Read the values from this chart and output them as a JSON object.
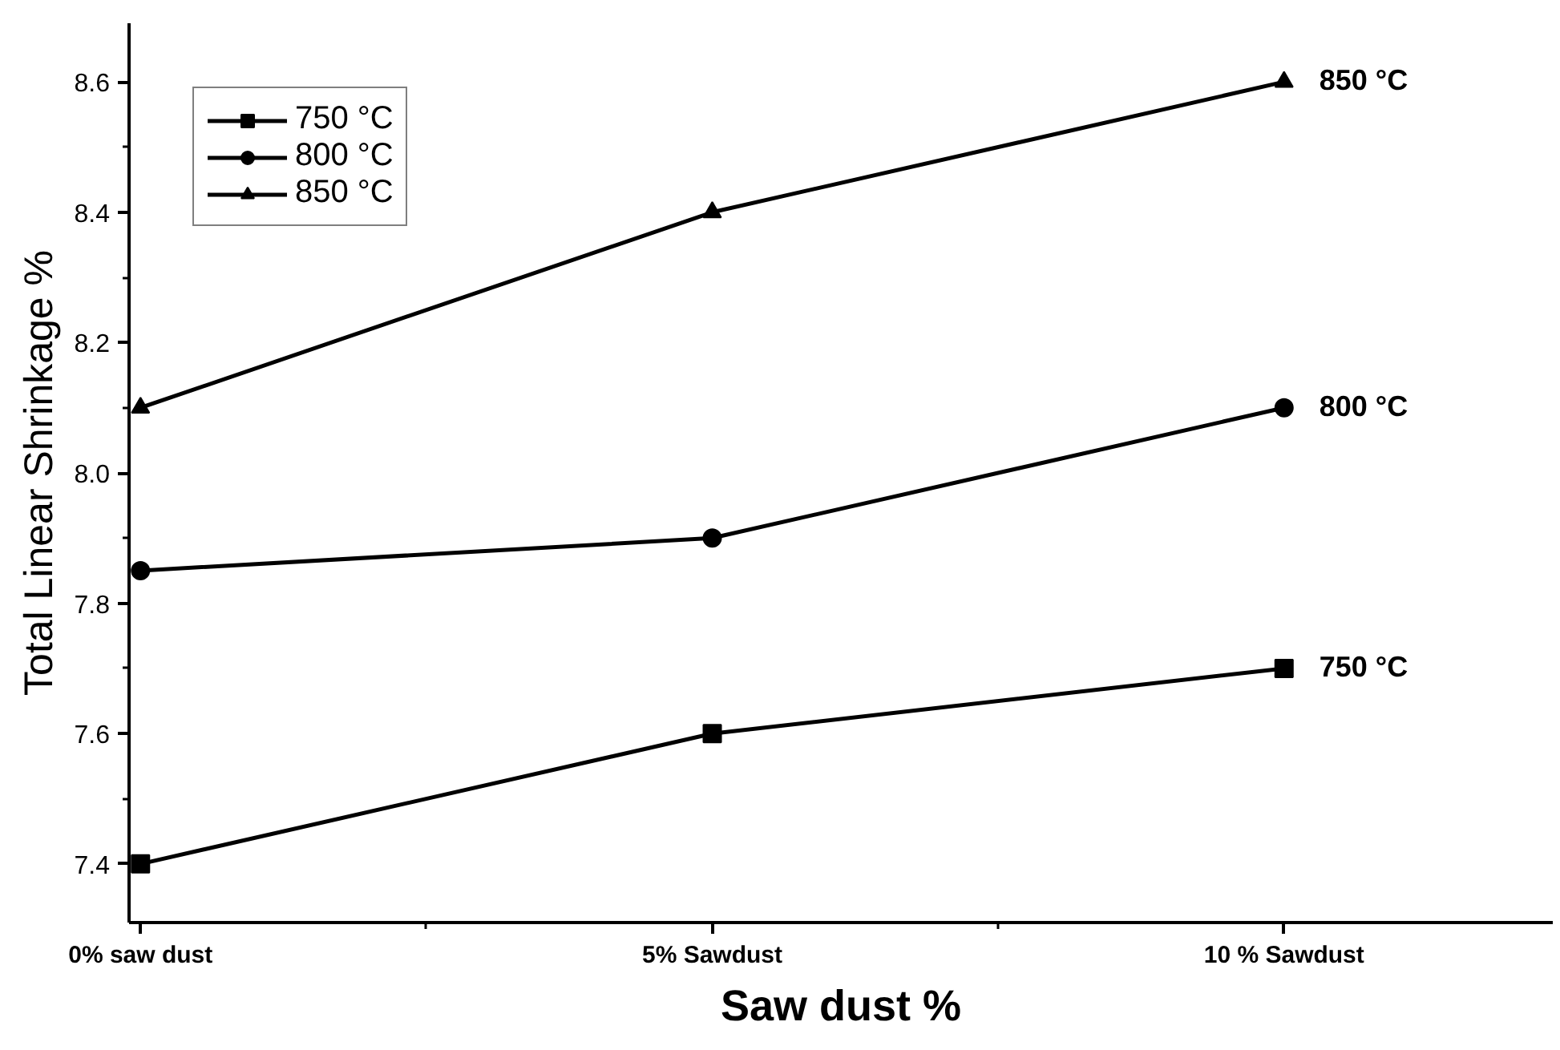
{
  "chart_data": {
    "type": "line",
    "xlabel": "Saw dust %",
    "ylabel": "Total Linear Shrinkage %",
    "categories": [
      "0% saw dust",
      "5% Sawdust",
      "10 % Sawdust"
    ],
    "series": [
      {
        "name": "750 °C",
        "color": "#000000",
        "marker": "square",
        "values": [
          7.4,
          7.6,
          7.7
        ]
      },
      {
        "name": "800 °C",
        "color": "#000000",
        "marker": "circle",
        "values": [
          7.85,
          7.9,
          8.1
        ]
      },
      {
        "name": "850 °C",
        "color": "#000000",
        "marker": "triangle",
        "values": [
          8.1,
          8.4,
          8.6
        ]
      }
    ],
    "ylim": [
      7.31,
      8.69
    ],
    "yticks": [
      {
        "value": 7.4,
        "label": "7.4"
      },
      {
        "value": 7.6,
        "label": "7.6"
      },
      {
        "value": 7.8,
        "label": "7.8"
      },
      {
        "value": 8.0,
        "label": "8.0"
      },
      {
        "value": 8.2,
        "label": "8.2"
      },
      {
        "value": 8.4,
        "label": "8.4"
      },
      {
        "value": 8.6,
        "label": "8.6"
      }
    ],
    "legend": "top left",
    "grid": false,
    "line_style": "solid",
    "annotations": [
      {
        "text": "750 °C",
        "x": "10 % Sawdust",
        "y": 7.7
      },
      {
        "text": "800 °C",
        "x": "10 % Sawdust",
        "y": 8.1
      },
      {
        "text": "850 °C",
        "x": "10 % Sawdust",
        "y": 8.6
      }
    ]
  }
}
